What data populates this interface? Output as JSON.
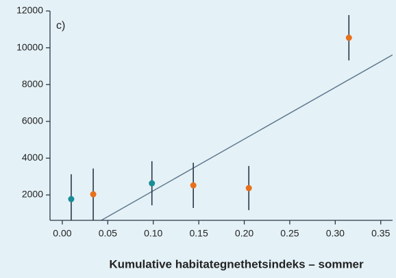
{
  "chart_data": {
    "type": "scatter",
    "annotation": "c)",
    "x_label": "Kumulative habitategnethetsindeks – sommer",
    "x": [
      0.0098,
      0.034,
      0.0985,
      0.144,
      0.205,
      0.315
    ],
    "values": [
      1776,
      2037,
      2634,
      2522,
      2373,
      10545
    ],
    "errors": [
      1350,
      1400,
      1200,
      1230,
      1200,
      1230
    ],
    "colors": [
      "#1a8d96",
      "#e8701a",
      "#1a8d96",
      "#e8701a",
      "#e8701a",
      "#e8701a"
    ],
    "error_color": "#2a3646",
    "trendline": {
      "slope": 28100,
      "intercept": -583,
      "color": "#60788c"
    },
    "xlim": [
      -0.0135,
      0.363
    ],
    "ylim": [
      620,
      12000
    ],
    "xticks": [
      {
        "value": 0,
        "label": "0.00"
      },
      {
        "value": 0.05,
        "label": "0.05"
      },
      {
        "value": 0.1,
        "label": "0.10"
      },
      {
        "value": 0.15,
        "label": "0.15"
      },
      {
        "value": 0.2,
        "label": "0.20"
      },
      {
        "value": 0.25,
        "label": "0.25"
      },
      {
        "value": 0.3,
        "label": "0.30"
      },
      {
        "value": 0.35,
        "label": "0.35"
      }
    ],
    "yticks": [
      2000,
      4000,
      6000,
      8000,
      10000,
      12000
    ]
  }
}
